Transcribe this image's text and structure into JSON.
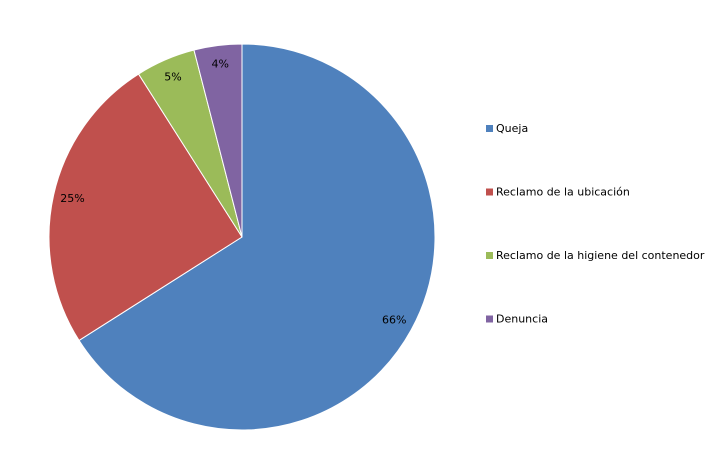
{
  "chart_data": {
    "type": "pie",
    "categories": [
      "Queja",
      "Reclamo de la ubicación",
      "Reclamo de la higiene del contenedor",
      "Denuncia"
    ],
    "values": [
      66,
      25,
      5,
      4
    ],
    "value_labels": [
      "66%",
      "25%",
      "5%",
      "4%"
    ],
    "colors": [
      "#4f81bd",
      "#c0504d",
      "#9bbb59",
      "#8064a2"
    ],
    "legend": "right"
  }
}
